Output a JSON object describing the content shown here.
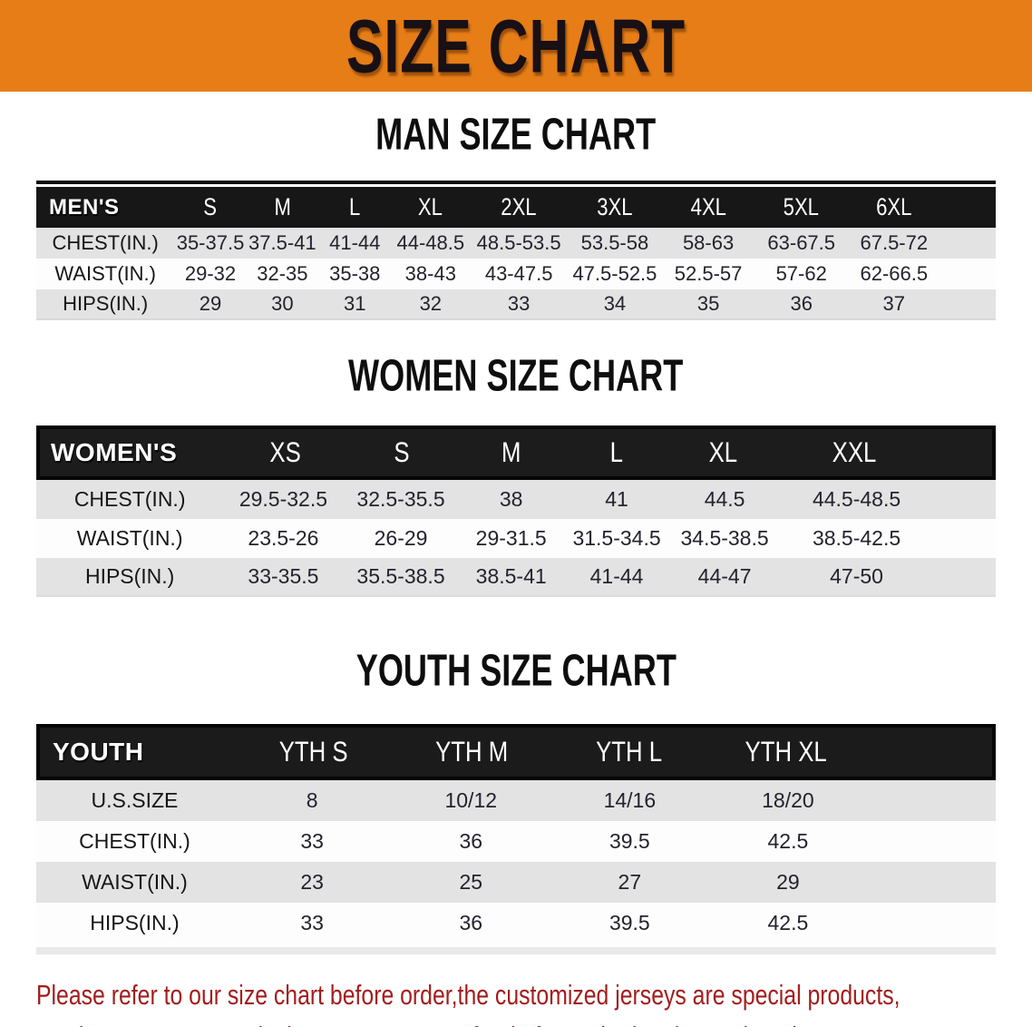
{
  "banner": {
    "title": "SIZE CHART",
    "bg_color": "#e67d17",
    "text_color": "#181014"
  },
  "colors": {
    "header_bar": "#171717",
    "row_shade": "#e3e3e3",
    "disclaimer_text": "#a31d1d"
  },
  "sections": {
    "men": {
      "heading": "MAN SIZE CHART",
      "label": "MEN'S",
      "columns": [
        "S",
        "M",
        "L",
        "XL",
        "2XL",
        "3XL",
        "4XL",
        "5XL",
        "6XL"
      ],
      "rows": [
        {
          "label": "CHEST(IN.)",
          "values": [
            "35-37.5",
            "37.5-41",
            "41-44",
            "44-48.5",
            "48.5-53.5",
            "53.5-58",
            "58-63",
            "63-67.5",
            "67.5-72"
          ]
        },
        {
          "label": "WAIST(IN.)",
          "values": [
            "29-32",
            "32-35",
            "35-38",
            "38-43",
            "43-47.5",
            "47.5-52.5",
            "52.5-57",
            "57-62",
            "62-66.5"
          ]
        },
        {
          "label": "HIPS(IN.)",
          "values": [
            "29",
            "30",
            "31",
            "32",
            "33",
            "34",
            "35",
            "36",
            "37"
          ]
        }
      ]
    },
    "women": {
      "heading": "WOMEN SIZE CHART",
      "label": "WOMEN'S",
      "columns": [
        "XS",
        "S",
        "M",
        "L",
        "XL",
        "XXL"
      ],
      "rows": [
        {
          "label": "CHEST(IN.)",
          "values": [
            "29.5-32.5",
            "32.5-35.5",
            "38",
            "41",
            "44.5",
            "44.5-48.5"
          ]
        },
        {
          "label": "WAIST(IN.)",
          "values": [
            "23.5-26",
            "26-29",
            "29-31.5",
            "31.5-34.5",
            "34.5-38.5",
            "38.5-42.5"
          ]
        },
        {
          "label": "HIPS(IN.)",
          "values": [
            "33-35.5",
            "35.5-38.5",
            "38.5-41",
            "41-44",
            "44-47",
            "47-50"
          ]
        }
      ]
    },
    "youth": {
      "heading": "YOUTH SIZE CHART",
      "label": "YOUTH",
      "columns": [
        "YTH S",
        "YTH M",
        "YTH L",
        "YTH XL"
      ],
      "rows": [
        {
          "label": "U.S.SIZE",
          "values": [
            "8",
            "10/12",
            "14/16",
            "18/20"
          ]
        },
        {
          "label": "CHEST(IN.)",
          "values": [
            "33",
            "36",
            "39.5",
            "42.5"
          ]
        },
        {
          "label": "WAIST(IN.)",
          "values": [
            "23",
            "25",
            "27",
            "29"
          ]
        },
        {
          "label": "HIPS(IN.)",
          "values": [
            "33",
            "36",
            "39.5",
            "42.5"
          ]
        }
      ]
    }
  },
  "disclaimer": {
    "line1": "Please refer to our size chart before order,the customized jerseys are special products,",
    "line2": "we don't accept cancel, change, teturn or refund after order has been placed!"
  }
}
